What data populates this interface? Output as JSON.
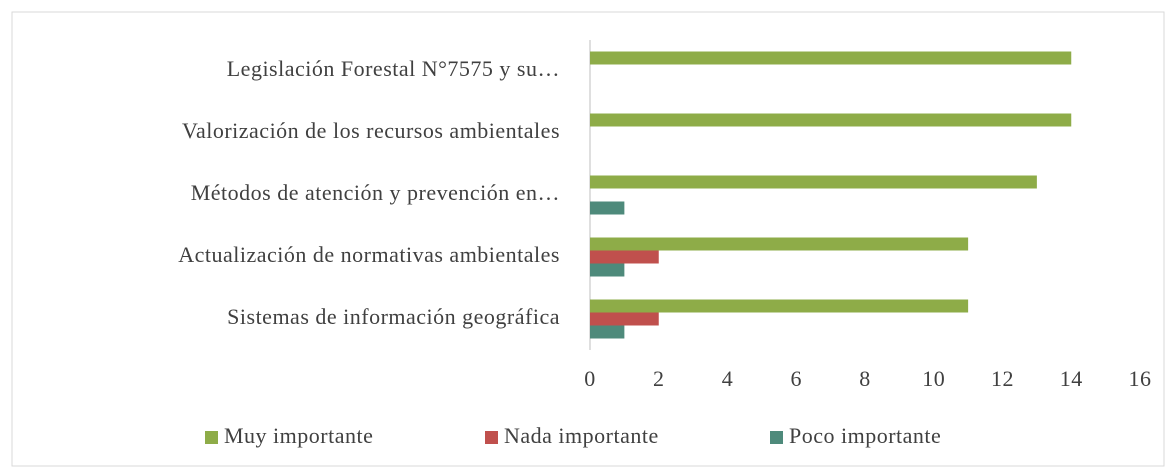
{
  "chart_data": {
    "type": "hbar",
    "categories": [
      "Legislación Forestal N°7575 y su…",
      "Valorización de los recursos ambientales",
      "Métodos de atención y prevención en…",
      "Actualización de normativas ambientales",
      "Sistemas de información geográfica"
    ],
    "series": [
      {
        "name": "Muy importante",
        "color": "#8eac48",
        "values": [
          14,
          14,
          13,
          11,
          11
        ]
      },
      {
        "name": "Nada importante",
        "color": "#c0504d",
        "values": [
          0,
          0,
          0,
          2,
          2
        ]
      },
      {
        "name": "Poco importante",
        "color": "#4e8a7b",
        "values": [
          0,
          0,
          1,
          1,
          1
        ]
      }
    ],
    "xlim": [
      0,
      16
    ],
    "xticks": [
      0,
      2,
      4,
      6,
      8,
      10,
      12,
      14,
      16
    ],
    "grid": false,
    "legend": "bottom"
  }
}
